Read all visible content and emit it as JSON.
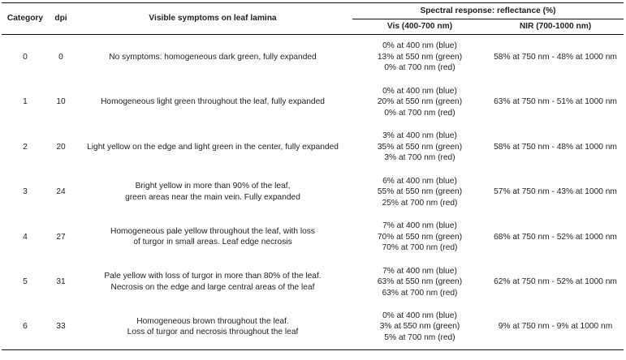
{
  "table": {
    "headers": {
      "category": "Category",
      "dpi": "dpi",
      "symptoms": "Visible symptoms on leaf lamina",
      "spectral": "Spectral response: reflectance (%)",
      "vis": "Vis (400-700 nm)",
      "nir": "NIR (700-1000 nm)"
    },
    "rows": [
      {
        "category": "0",
        "dpi": "0",
        "symptoms": "No symptoms: homogeneous dark green, fully expanded",
        "vis": "0% at 400 nm (blue)\n13% at 550 nm (green)\n0% at 700 nm (red)",
        "nir": "58% at 750 nm - 48% at 1000 nm"
      },
      {
        "category": "1",
        "dpi": "10",
        "symptoms": "Homogeneous light green throughout the leaf, fully expanded",
        "vis": "0% at 400 nm (blue)\n20% at 550 nm (green)\n0% at 700 nm (red)",
        "nir": "63% at 750 nm - 51% at 1000 nm"
      },
      {
        "category": "2",
        "dpi": "20",
        "symptoms": "Light yellow on the edge and light green in the center, fully expanded",
        "vis": "3% at 400 nm (blue)\n35% at 550 nm (green)\n3% at 700 nm (red)",
        "nir": "58% at 750 nm - 48% at 1000 nm"
      },
      {
        "category": "3",
        "dpi": "24",
        "symptoms": "Bright yellow in more than 90% of the leaf,\ngreen areas near the main vein. Fully expanded",
        "vis": "6% at 400 nm (blue)\n55% at 550 nm (green)\n25% at 700 nm (red)",
        "nir": "57% at 750 nm - 43% at 1000 nm"
      },
      {
        "category": "4",
        "dpi": "27",
        "symptoms": "Homogeneous pale yellow throughout the leaf, with loss\nof turgor in small areas. Leaf edge necrosis",
        "vis": "7% at 400 nm (blue)\n70% at 550 nm (green)\n70% at 700 nm (red)",
        "nir": "68% at 750 nm - 52% at 1000 nm"
      },
      {
        "category": "5",
        "dpi": "31",
        "symptoms": "Pale yellow with loss of turgor in more than 80% of the leaf.\nNecrosis on the edge and large central areas of the leaf",
        "vis": "7% at 400 nm (blue)\n63% at 550 nm (green)\n63% at 700 nm (red)",
        "nir": "62% at 750 nm - 52% at 1000 nm"
      },
      {
        "category": "6",
        "dpi": "33",
        "symptoms": "Homogeneous brown throughout the leaf.\nLoss of turgor and necrosis throughout the leaf",
        "vis": "0% at 400 nm (blue)\n3% at 550 nm (green)\n5% at 700 nm (red)",
        "nir": "9% at 750 nm - 9% at 1000 nm"
      }
    ]
  }
}
